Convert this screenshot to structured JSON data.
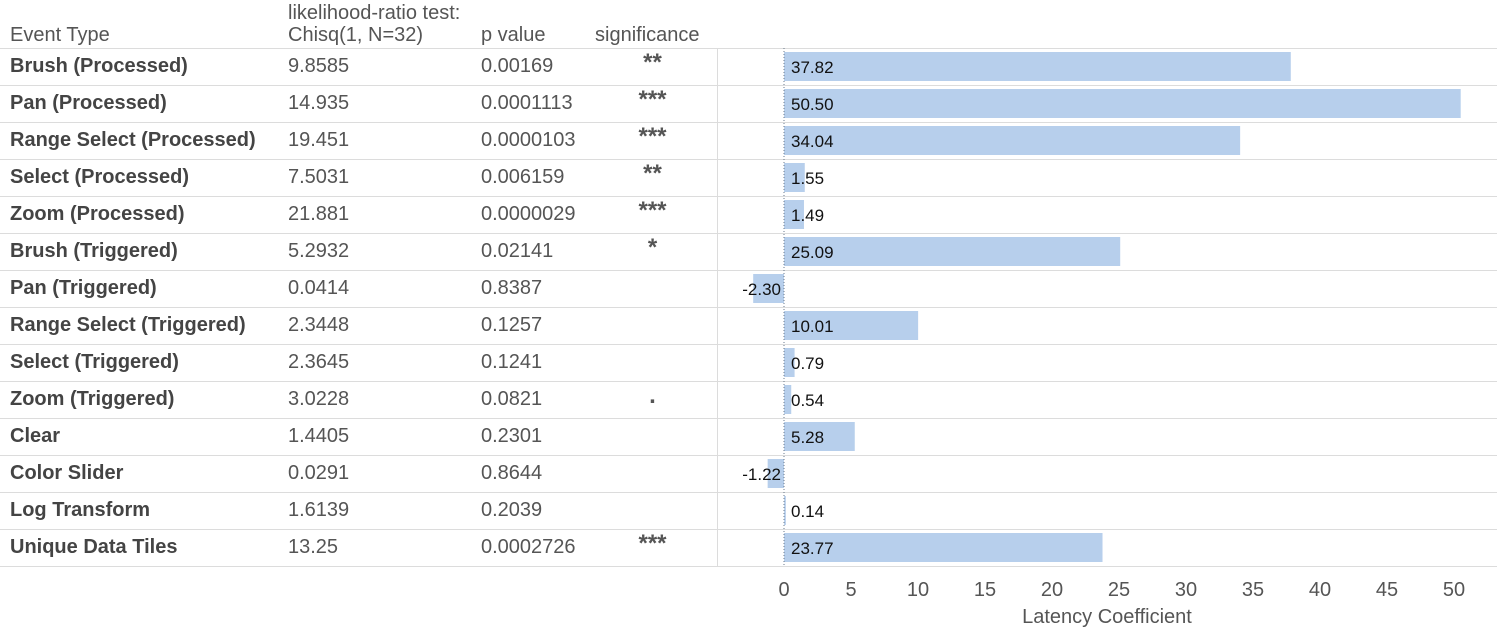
{
  "table": {
    "headers": {
      "event_type": "Event Type",
      "chisq_line1": "likelihood-ratio test:",
      "chisq_line2": "Chisq(1, N=32)",
      "p_value": "p value",
      "significance": "significance"
    },
    "rows": [
      {
        "event": "Brush (Processed)",
        "chisq": "9.8585",
        "p": "0.00169",
        "sig": "**"
      },
      {
        "event": "Pan (Processed)",
        "chisq": "14.935",
        "p": "0.0001113",
        "sig": "***"
      },
      {
        "event": "Range Select (Processed)",
        "chisq": "19.451",
        "p": "0.0000103",
        "sig": "***"
      },
      {
        "event": "Select (Processed)",
        "chisq": "7.5031",
        "p": "0.006159",
        "sig": "**"
      },
      {
        "event": "Zoom (Processed)",
        "chisq": "21.881",
        "p": "0.0000029",
        "sig": "***"
      },
      {
        "event": "Brush (Triggered)",
        "chisq": "5.2932",
        "p": "0.02141",
        "sig": "*"
      },
      {
        "event": "Pan (Triggered)",
        "chisq": "0.0414",
        "p": "0.8387",
        "sig": ""
      },
      {
        "event": "Range Select (Triggered)",
        "chisq": "2.3448",
        "p": "0.1257",
        "sig": ""
      },
      {
        "event": "Select (Triggered)",
        "chisq": "2.3645",
        "p": "0.1241",
        "sig": ""
      },
      {
        "event": "Zoom (Triggered)",
        "chisq": "3.0228",
        "p": "0.0821",
        "sig": "."
      },
      {
        "event": "Clear",
        "chisq": "1.4405",
        "p": "0.2301",
        "sig": ""
      },
      {
        "event": "Color Slider",
        "chisq": "0.0291",
        "p": "0.8644",
        "sig": ""
      },
      {
        "event": "Log Transform",
        "chisq": "1.6139",
        "p": "0.2039",
        "sig": ""
      },
      {
        "event": "Unique Data Tiles",
        "chisq": "13.25",
        "p": "0.0002726",
        "sig": "***"
      }
    ]
  },
  "chart_data": {
    "type": "bar",
    "orientation": "horizontal",
    "categories": [
      "Brush (Processed)",
      "Pan (Processed)",
      "Range Select (Processed)",
      "Select (Processed)",
      "Zoom (Processed)",
      "Brush (Triggered)",
      "Pan (Triggered)",
      "Range Select (Triggered)",
      "Select (Triggered)",
      "Zoom (Triggered)",
      "Clear",
      "Color Slider",
      "Log Transform",
      "Unique Data Tiles"
    ],
    "values": [
      37.82,
      50.5,
      34.04,
      1.55,
      1.49,
      25.09,
      -2.3,
      10.01,
      0.79,
      0.54,
      5.28,
      -1.22,
      0.14,
      23.77
    ],
    "value_labels": [
      "37.82",
      "50.50",
      "34.04",
      "1.55",
      "1.49",
      "25.09",
      "-2.30",
      "10.01",
      "0.79",
      "0.54",
      "5.28",
      "-1.22",
      "0.14",
      "23.77"
    ],
    "xlabel": "Latency Coefficient",
    "xticks": [
      0,
      5,
      10,
      15,
      20,
      25,
      30,
      35,
      40,
      45,
      50
    ],
    "xlim": [
      -5,
      52.5
    ],
    "bar_color": "#b7cfec",
    "zero_line": "dotted",
    "grid": false
  }
}
